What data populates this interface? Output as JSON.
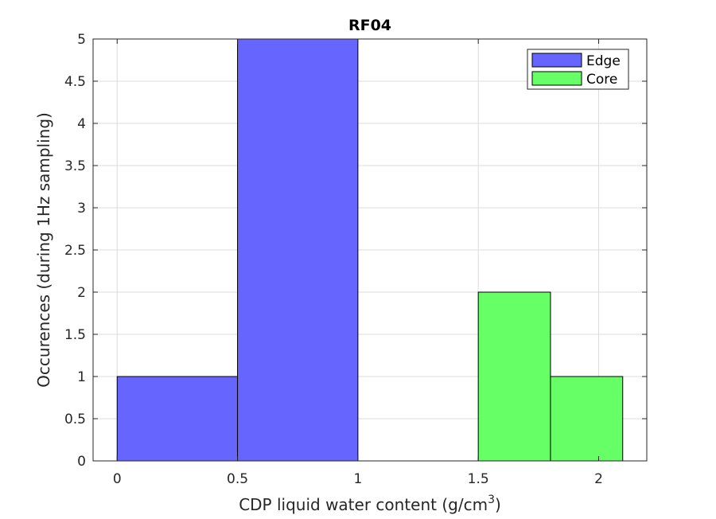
{
  "chart_data": {
    "type": "bar",
    "title": "RF04",
    "xlabel": "CDP liquid water content (g/cm",
    "xlabel_superscript": "3",
    "xlabel_suffix": ")",
    "ylabel": "Occurences (during 1Hz sampling)",
    "xlim": [
      -0.1,
      2.2
    ],
    "ylim": [
      0,
      5
    ],
    "xticks": [
      "0",
      "0.5",
      "1",
      "1.5",
      "2"
    ],
    "xtick_values": [
      0,
      0.5,
      1,
      1.5,
      2
    ],
    "yticks": [
      "0",
      "0.5",
      "1",
      "1.5",
      "2",
      "2.5",
      "3",
      "3.5",
      "4",
      "4.5",
      "5"
    ],
    "ytick_values": [
      0,
      0.5,
      1,
      1.5,
      2,
      2.5,
      3,
      3.5,
      4,
      4.5,
      5
    ],
    "grid": true,
    "legend_position": "top-right",
    "series": [
      {
        "name": "Edge",
        "color": "#6666ff",
        "bins": [
          {
            "x0": 0.0,
            "x1": 0.5,
            "value": 1
          },
          {
            "x0": 0.5,
            "x1": 1.0,
            "value": 5
          }
        ]
      },
      {
        "name": "Core",
        "color": "#66ff66",
        "bins": [
          {
            "x0": 1.5,
            "x1": 1.8,
            "value": 2
          },
          {
            "x0": 1.8,
            "x1": 2.1,
            "value": 1
          }
        ]
      }
    ]
  }
}
